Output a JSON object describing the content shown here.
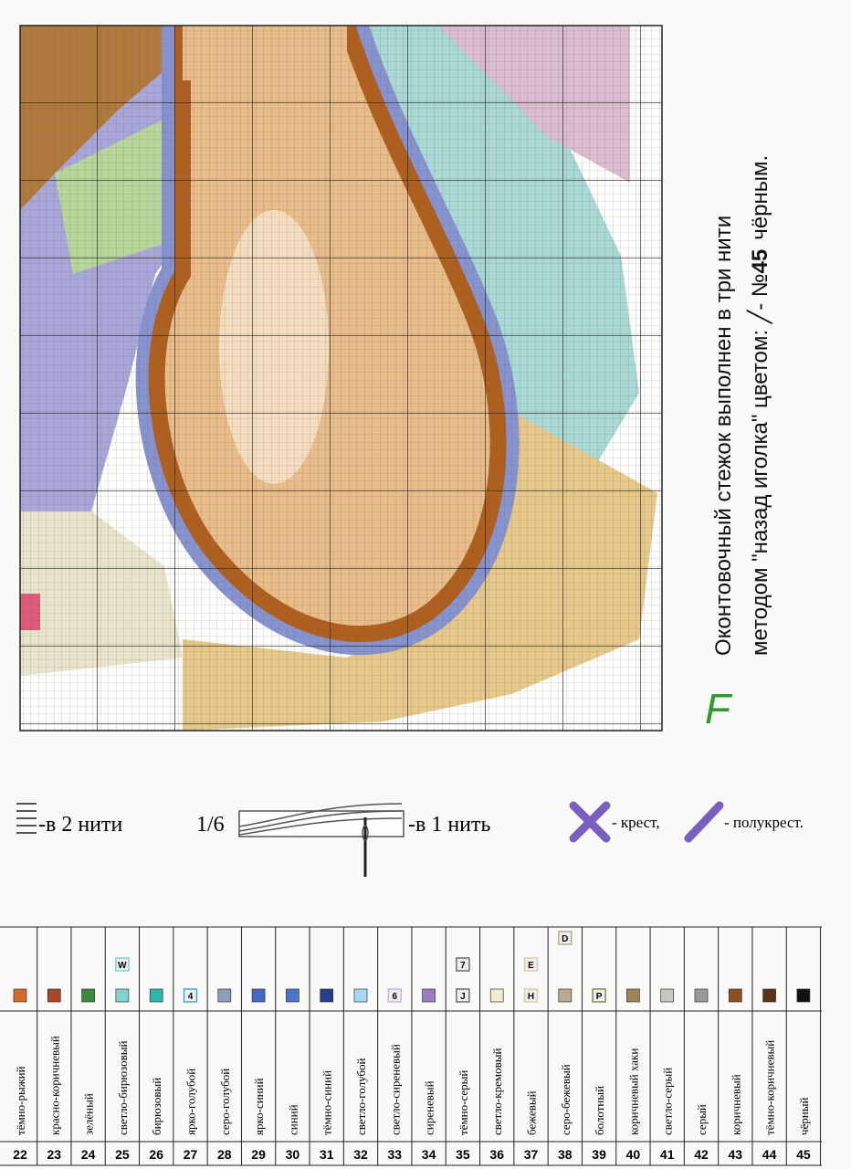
{
  "instruction": {
    "line1": "Оконтовочный  стежок выполнен в три нити",
    "line2_start": "методом \"назад иголка\" цветом:  ╱- №",
    "line2_number": "45",
    "line2_end": "чёрным."
  },
  "section_label": "F",
  "legend": {
    "double": "-в 2 нити",
    "fraction": "1/6",
    "single": "-в 1 нить",
    "cross": "- крест,",
    "half_cross": "- полукрест."
  },
  "table": {
    "rows": [
      {
        "number": "22",
        "name": "тёмно-рыжий"
      },
      {
        "number": "23",
        "name": "красно-коричневый"
      },
      {
        "number": "24",
        "name": "зелёный"
      },
      {
        "number": "25",
        "name": "светло-бирюзовый",
        "symbols": {
          "second": "W"
        }
      },
      {
        "number": "26",
        "name": "бирюзовый"
      },
      {
        "number": "27",
        "name": "ярко-голубой",
        "symbols": {
          "main": "4"
        }
      },
      {
        "number": "28",
        "name": "серо-голубой"
      },
      {
        "number": "29",
        "name": "ярко-синий"
      },
      {
        "number": "30",
        "name": "синий"
      },
      {
        "number": "31",
        "name": "тёмно-синий"
      },
      {
        "number": "32",
        "name": "светло-голубой"
      },
      {
        "number": "33",
        "name": "светло-сиреневый",
        "symbols": {
          "main": "6"
        }
      },
      {
        "number": "34",
        "name": "сиреневый"
      },
      {
        "number": "35",
        "name": "тёмно-серый",
        "symbols": {
          "second": "7",
          "main": "J"
        }
      },
      {
        "number": "36",
        "name": "светло-кремовый"
      },
      {
        "number": "37",
        "name": "бежевый",
        "symbols": {
          "second": "E",
          "main": "H"
        }
      },
      {
        "number": "38",
        "name": "серо-бежевый",
        "symbols": {
          "top": "D"
        }
      },
      {
        "number": "39",
        "name": "болотный",
        "symbols": {
          "main": "P"
        }
      },
      {
        "number": "40",
        "name": "коричневый хаки"
      },
      {
        "number": "41",
        "name": "светло-серый"
      },
      {
        "number": "42",
        "name": "серый"
      },
      {
        "number": "43",
        "name": "коричневый"
      },
      {
        "number": "44",
        "name": "тёмно-коричневый"
      },
      {
        "number": "45",
        "name": "чёрный"
      }
    ]
  }
}
